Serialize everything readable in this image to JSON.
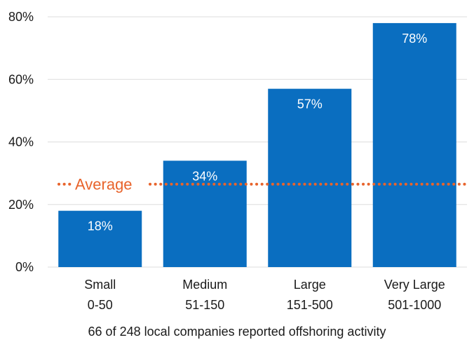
{
  "chart_data": {
    "type": "bar",
    "categories": [
      {
        "line1": "Small",
        "line2": "0-50"
      },
      {
        "line1": "Medium",
        "line2": "51-150"
      },
      {
        "line1": "Large",
        "line2": "151-500"
      },
      {
        "line1": "Very Large",
        "line2": "501-1000"
      }
    ],
    "values": [
      18,
      34,
      57,
      78
    ],
    "value_labels": [
      "18%",
      "34%",
      "57%",
      "78%"
    ],
    "ylim": [
      0,
      80
    ],
    "yticks": [
      0,
      20,
      40,
      60,
      80
    ],
    "ytick_labels": [
      "0%",
      "20%",
      "40%",
      "60%",
      "80%"
    ],
    "grid": true,
    "average": {
      "label": "Average",
      "value": 26.5
    },
    "caption": "66 of 248 local companies reported offshoring activity",
    "colors": {
      "bar": "#0a6ec0",
      "average": "#e8642c",
      "grid": "#dddddd",
      "text": "#1a1a1a"
    }
  }
}
